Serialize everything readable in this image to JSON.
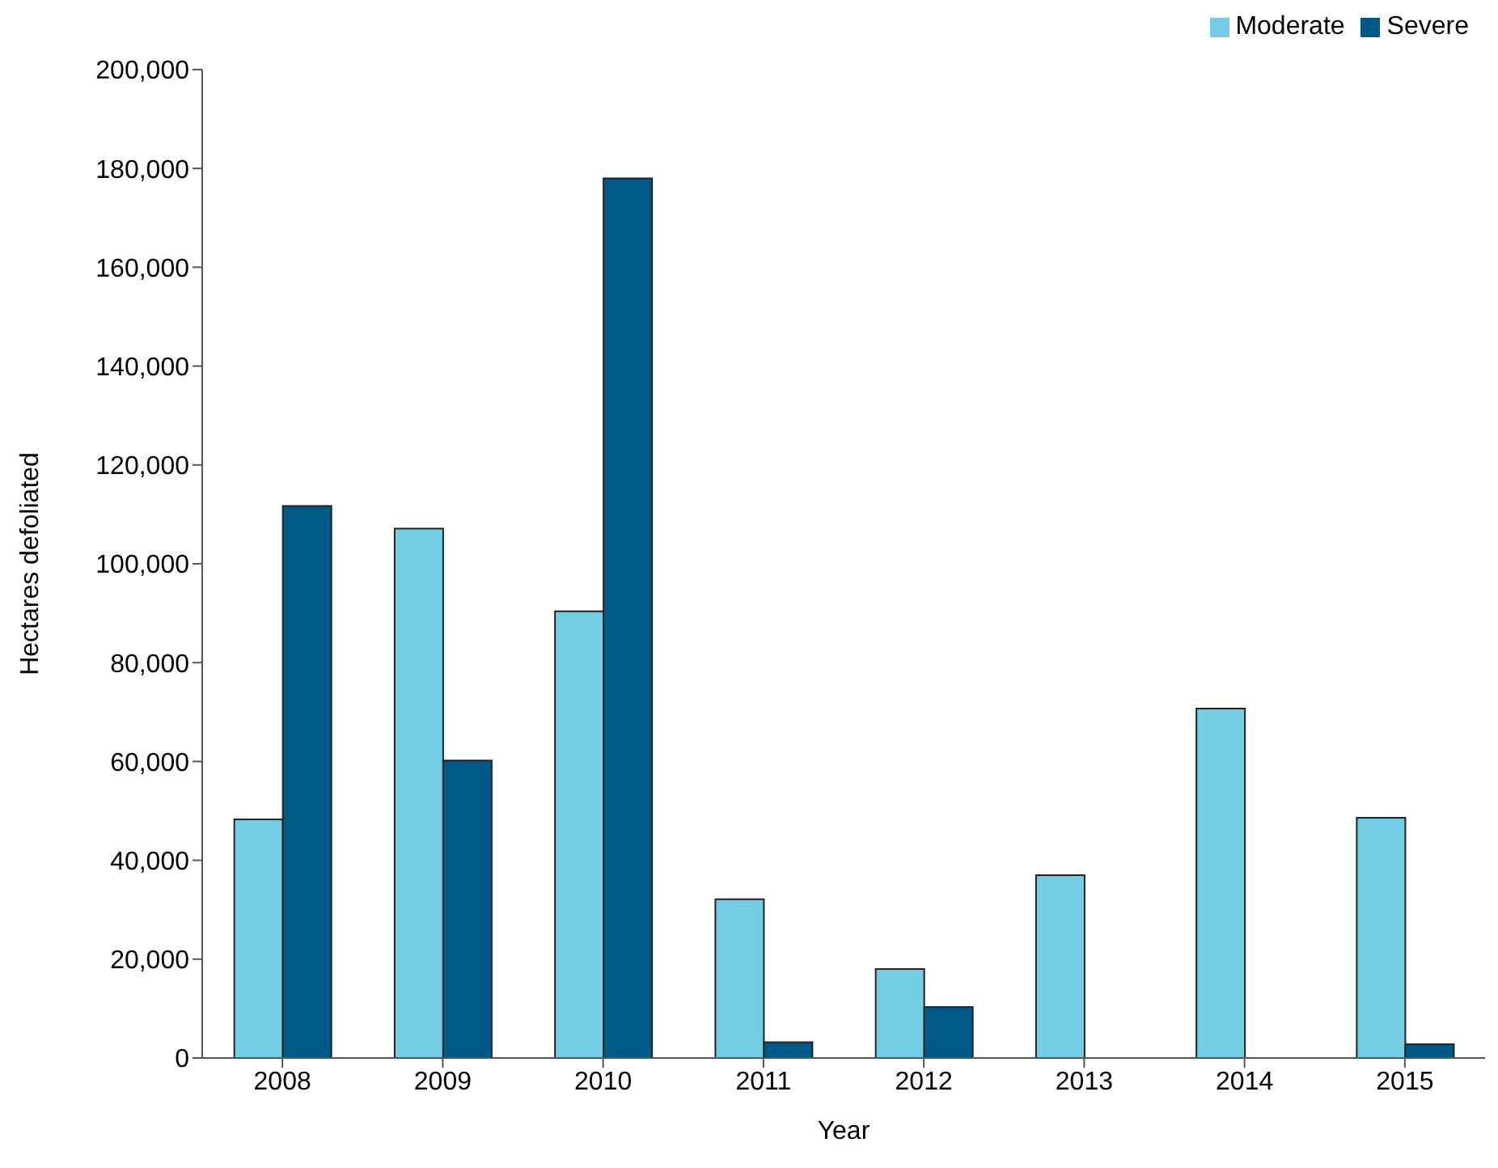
{
  "chart_data": {
    "type": "bar",
    "xlabel": "Year",
    "ylabel": "Hectares defoliated",
    "categories": [
      "2008",
      "2009",
      "2010",
      "2011",
      "2012",
      "2013",
      "2014",
      "2015"
    ],
    "series": [
      {
        "name": "Moderate",
        "color": "#72cde4",
        "values": [
          48300,
          107100,
          90400,
          32100,
          18000,
          37000,
          70700,
          48600
        ]
      },
      {
        "name": "Severe",
        "color": "#005a87",
        "values": [
          111700,
          60200,
          178000,
          3200,
          10300,
          0,
          0,
          2800
        ]
      }
    ],
    "ylim": [
      0,
      200000
    ],
    "yticks": [
      0,
      {
        "value": 20000,
        "label": "20,000"
      },
      {
        "value": 40000,
        "label": "40,000"
      },
      {
        "value": 60000,
        "label": "60,000"
      },
      {
        "value": 80000,
        "label": "80,000"
      },
      {
        "value": 100000,
        "label": "100,000"
      },
      {
        "value": 120000,
        "label": "120,000"
      },
      {
        "value": 140000,
        "label": "140,000"
      },
      {
        "value": 160000,
        "label": "160,000"
      },
      {
        "value": 180000,
        "label": "180,000"
      },
      {
        "value": 200000,
        "label": "200,000"
      }
    ],
    "grid": false,
    "legend": "top right"
  }
}
